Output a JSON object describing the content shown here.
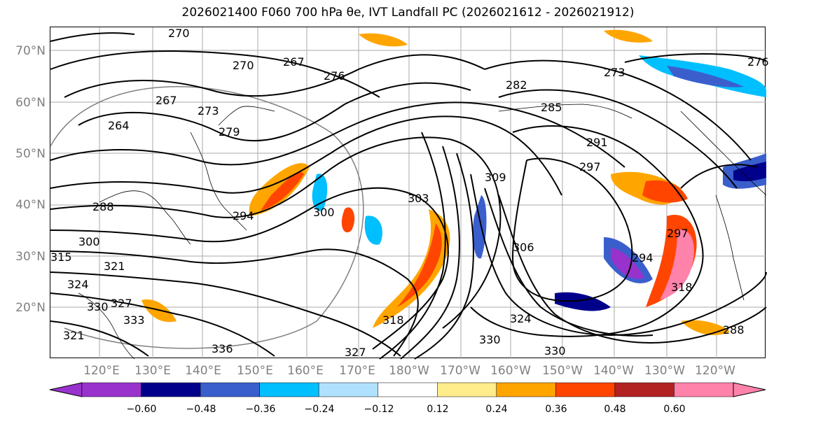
{
  "title": "2026021400 F060 700 hPa θe, IVT Landfall PC (2026021612 - 2026021912)",
  "lat_labels": [
    "70°N",
    "60°N",
    "50°N",
    "40°N",
    "30°N",
    "20°N"
  ],
  "lon_labels": [
    "120°E",
    "130°E",
    "140°E",
    "150°E",
    "160°E",
    "170°E",
    "180°W",
    "170°W",
    "160°W",
    "150°W",
    "140°W",
    "130°W",
    "120°W"
  ],
  "contour_labels": [
    "270",
    "267",
    "276",
    "270",
    "267",
    "264",
    "273",
    "279",
    "282",
    "285",
    "291",
    "297",
    "273",
    "309",
    "303",
    "300",
    "306",
    "294",
    "288",
    "300",
    "315",
    "321",
    "324",
    "330",
    "327",
    "333",
    "321",
    "336",
    "327",
    "330",
    "324",
    "318",
    "330",
    "318",
    "294",
    "297",
    "288",
    "276"
  ],
  "colorbar": {
    "colors": [
      "#9932cc",
      "#00008b",
      "#3a5fcd",
      "#00bfff",
      "#b0e2ff",
      "#ffffff",
      "#ffec8b",
      "#ffa500",
      "#ff4500",
      "#b22222",
      "#ff82ab"
    ],
    "ticks": [
      "−0.60",
      "−0.48",
      "−0.36",
      "−0.24",
      "−0.12",
      "0.12",
      "0.24",
      "0.36",
      "0.48",
      "0.60"
    ]
  },
  "legend_colors": {
    "purple": "#9932cc",
    "navy": "#00008b",
    "blue": "#3a5fcd",
    "deepsky": "#00bfff",
    "lightblue": "#b0e2ff",
    "yellow": "#ffec8b",
    "orange": "#ffa500",
    "red": "#ff4500",
    "firebrick": "#b22222",
    "pink": "#ff82ab"
  }
}
